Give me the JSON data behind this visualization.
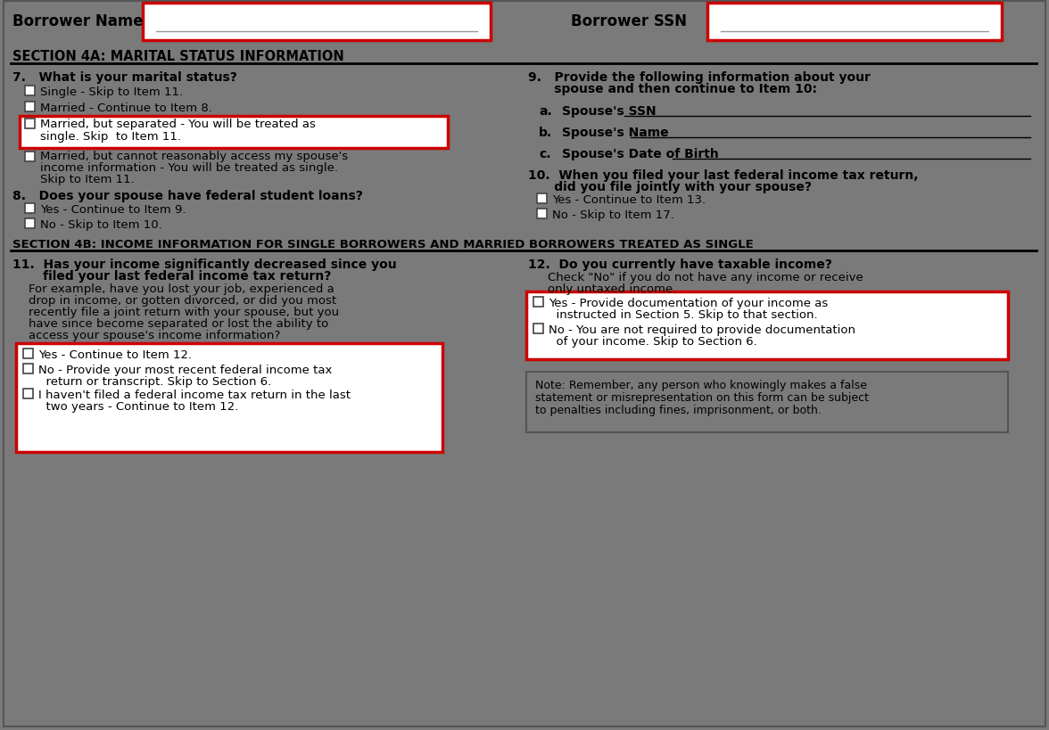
{
  "bg_color": "#7a7a7a",
  "white": "#ffffff",
  "red": "#cc0000",
  "black": "#000000",
  "dark_gray": "#444444",
  "light_border": "#999999",
  "header_name": "Borrower Name",
  "header_ssn": "Borrower SSN",
  "sec4a": "SECTION 4A: MARITAL STATUS INFORMATION",
  "sec4b": "SECTION 4B: INCOME INFORMATION FOR SINGLE BORROWERS AND MARRIED BORROWERS TREATED AS SINGLE",
  "q7": "7.   What is your marital status?",
  "q7_opts": [
    "Single - Skip to Item 11.",
    "Married - Continue to Item 8.",
    "Married, but separated - You will be treated as\nsingle. Skip  to Item 11.",
    "Married, but cannot reasonably access my spouse's\nincome information - You will be treated as single.\nSkip to Item 11."
  ],
  "q8": "8.   Does your spouse have federal student loans?",
  "q8_opts": [
    "Yes - Continue to Item 9.",
    "No - Skip to Item 10."
  ],
  "q9a": "9.   Provide the following information about your",
  "q9b": "      spouse and then continue to Item 10:",
  "q9_items": [
    [
      "a.",
      "Spouse's SSN"
    ],
    [
      "b.",
      "Spouse's Name"
    ],
    [
      "c.",
      "Spouse's Date of Birth"
    ]
  ],
  "q10a": "10.  When you filed your last federal income tax return,",
  "q10b": "      did you file jointly with your spouse?",
  "q10_opts": [
    "Yes - Continue to Item 13.",
    "No - Skip to Item 17."
  ],
  "q11a": "11.  Has your income significantly decreased since you",
  "q11b": "       filed your last federal income tax return?",
  "q11_body": [
    "For example, have you lost your job, experienced a",
    "drop in income, or gotten divorced, or did you most",
    "recently file a joint return with your spouse, but you",
    "have since become separated or lost the ability to",
    "access your spouse's income information?"
  ],
  "q11_opts": [
    "Yes - Continue to Item 12.",
    "No - Provide your most recent federal income tax\n  return or transcript. Skip to Section 6.",
    "I haven't filed a federal income tax return in the last\n  two years - Continue to Item 12."
  ],
  "q12a": "12.  Do you currently have taxable income?",
  "q12_body": [
    "Check \"No\" if you do not have any income or receive",
    "only untaxed income."
  ],
  "q12_opts": [
    "Yes - Provide documentation of your income as\n  instructed in Section 5. Skip to that section.",
    "No - You are not required to provide documentation\n  of your income. Skip to Section 6."
  ],
  "note": [
    "Note: Remember, any person who knowingly makes a false",
    "statement or misrepresentation on this form can be subject",
    "to penalties including fines, imprisonment, or both."
  ]
}
